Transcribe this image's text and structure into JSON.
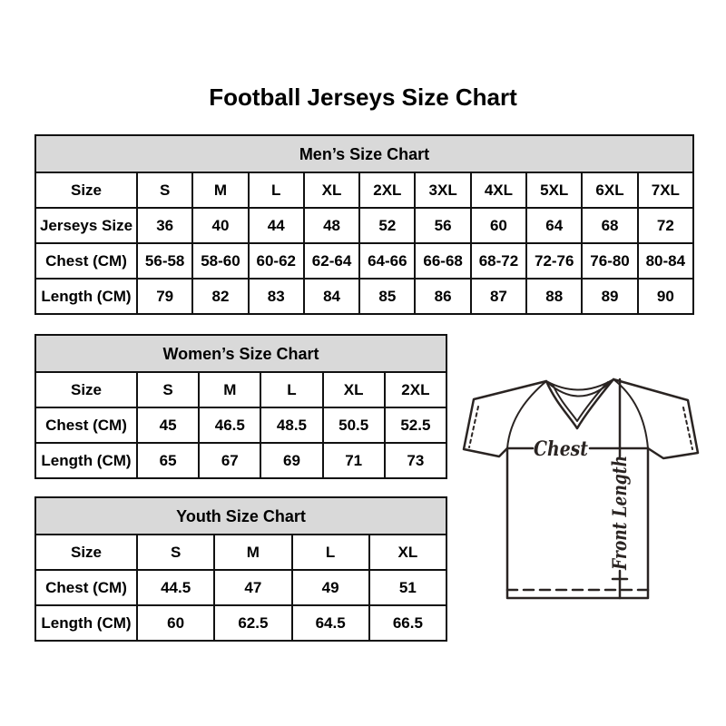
{
  "page": {
    "title": "Football Jerseys Size Chart"
  },
  "tables": {
    "men": {
      "title": "Men’s Size Chart",
      "rows": [
        [
          "Size",
          "S",
          "M",
          "L",
          "XL",
          "2XL",
          "3XL",
          "4XL",
          "5XL",
          "6XL",
          "7XL"
        ],
        [
          "Jerseys Size",
          "36",
          "40",
          "44",
          "48",
          "52",
          "56",
          "60",
          "64",
          "68",
          "72"
        ],
        [
          "Chest (CM)",
          "56-58",
          "58-60",
          "60-62",
          "62-64",
          "64-66",
          "66-68",
          "68-72",
          "72-76",
          "76-80",
          "80-84"
        ],
        [
          "Length (CM)",
          "79",
          "82",
          "83",
          "84",
          "85",
          "86",
          "87",
          "88",
          "89",
          "90"
        ]
      ]
    },
    "women": {
      "title": "Women’s Size Chart",
      "rows": [
        [
          "Size",
          "S",
          "M",
          "L",
          "XL",
          "2XL"
        ],
        [
          "Chest (CM)",
          "45",
          "46.5",
          "48.5",
          "50.5",
          "52.5"
        ],
        [
          "Length (CM)",
          "65",
          "67",
          "69",
          "71",
          "73"
        ]
      ]
    },
    "youth": {
      "title": "Youth Size Chart",
      "rows": [
        [
          "Size",
          "S",
          "M",
          "L",
          "XL"
        ],
        [
          "Chest (CM)",
          "44.5",
          "47",
          "49",
          "51"
        ],
        [
          "Length (CM)",
          "60",
          "62.5",
          "64.5",
          "66.5"
        ]
      ]
    }
  },
  "diagram": {
    "chest_label": "Chest",
    "front_length_label": "Front Length"
  },
  "colors": {
    "table_header_bg": "#d9d9d9",
    "table_border": "#111111",
    "diagram_stroke": "#2a2422",
    "text": "#000000",
    "background": "#ffffff"
  }
}
